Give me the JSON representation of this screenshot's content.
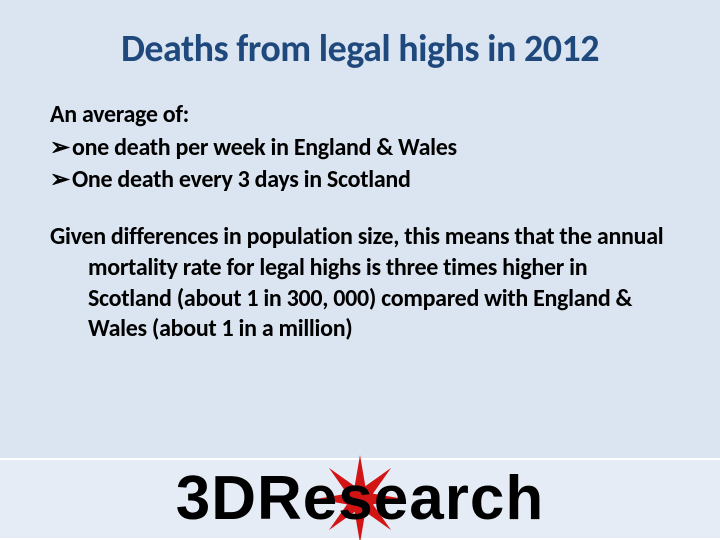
{
  "background_color": "#dbe5f1",
  "title": {
    "text": "Deaths from legal highs in 2012",
    "color": "#1f497d",
    "fontsize_pt": 38,
    "weight": 700
  },
  "body": {
    "color": "#000000",
    "fontsize_pt": 24,
    "weight": 700,
    "intro": "An average of:",
    "bullets": [
      "one death per week in England & Wales",
      "One death every 3 days in Scotland"
    ],
    "bullet_glyph": "➢",
    "para2": "Given differences in population size, this means that the annual mortality rate for legal highs is three times higher in Scotland (about 1 in 300, 000) compared with England & Wales (about 1 in a million)"
  },
  "logo": {
    "left_text": "3DR",
    "right_text": "esearch",
    "text_color": "#000000",
    "star_color": "#d31414",
    "star_points": 8,
    "star_outer_r": 44,
    "star_inner_r": 14
  }
}
